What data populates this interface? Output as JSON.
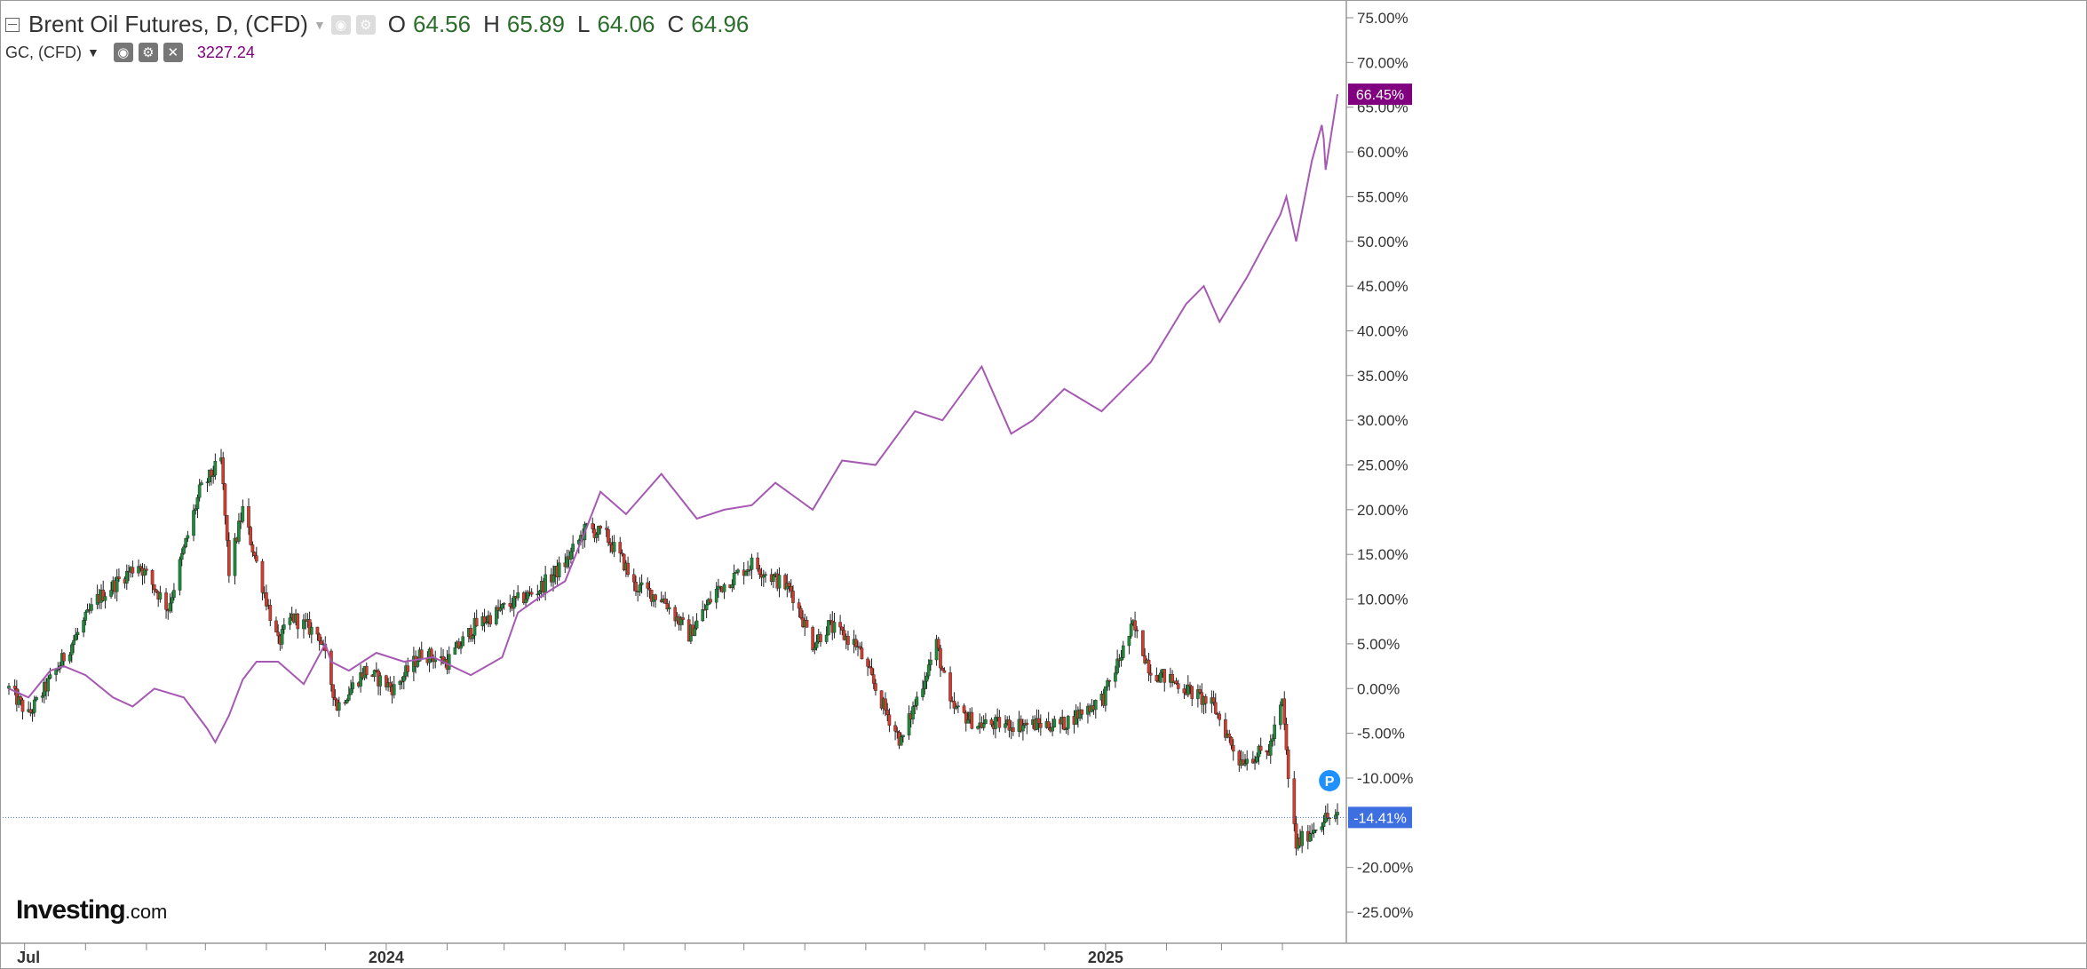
{
  "legend": {
    "instrument": "Brent Oil Futures, D, (CFD)",
    "open_label": "O",
    "open": "64.56",
    "high_label": "H",
    "high": "65.89",
    "low_label": "L",
    "low": "64.06",
    "close_label": "C",
    "close": "64.96",
    "compare_symbol": "GC, (CFD)",
    "compare_value": "3227.24"
  },
  "logo": {
    "main": "Investing",
    "domain": ".com"
  },
  "colors": {
    "up": "#1e8a3a",
    "down": "#d23c2d",
    "compare": "#a659b3",
    "compare_badge": "#800080",
    "price_badge": "#3d6fe0",
    "grid": "#e0e0e0",
    "axis_text": "#333333"
  },
  "chart_data": {
    "type": "candlestick",
    "y_axis": {
      "unit": "%",
      "range": [
        -27,
        77
      ],
      "ticks": [
        "75.00%",
        "70.00%",
        "65.00%",
        "60.00%",
        "55.00%",
        "50.00%",
        "45.00%",
        "40.00%",
        "35.00%",
        "30.00%",
        "25.00%",
        "20.00%",
        "15.00%",
        "10.00%",
        "5.00%",
        "0.00%",
        "-5.00%",
        "-10.00%",
        "-20.00%",
        "-25.00%"
      ],
      "tick_values": [
        75,
        70,
        65,
        60,
        55,
        50,
        45,
        40,
        35,
        30,
        25,
        20,
        15,
        10,
        5,
        0,
        -5,
        -10,
        -20,
        -25
      ]
    },
    "x_axis": {
      "labels": [
        "Jul",
        "2024",
        "2025"
      ],
      "label_dates": [
        "2023-07-03",
        "2024-01-01",
        "2025-01-01"
      ],
      "range": [
        "2023-06-23",
        "2025-04-29"
      ]
    },
    "current_lines": [
      {
        "series": "Brent Oil Futures",
        "value": -14.41,
        "label": "-14.41%"
      },
      {
        "series": "GC",
        "value": 66.45,
        "label": "66.45%"
      }
    ],
    "marker": {
      "text": "P",
      "date": "2025-04-25",
      "value": -10.3
    },
    "series": [
      {
        "name": "Brent Oil Futures",
        "kind": "candlestick",
        "anchors": [
          [
            "2023-06-23",
            0.0
          ],
          [
            "2023-07-03",
            -3.0
          ],
          [
            "2023-07-17",
            2.0
          ],
          [
            "2023-08-07",
            10.0
          ],
          [
            "2023-08-28",
            14.0
          ],
          [
            "2023-09-12",
            9.0
          ],
          [
            "2023-09-28",
            22.0
          ],
          [
            "2023-10-09",
            25.5
          ],
          [
            "2023-10-13",
            13.0
          ],
          [
            "2023-10-20",
            20.0
          ],
          [
            "2023-10-27",
            14.0
          ],
          [
            "2023-11-07",
            5.0
          ],
          [
            "2023-11-14",
            8.0
          ],
          [
            "2023-11-28",
            6.0
          ],
          [
            "2023-12-07",
            -2.0
          ],
          [
            "2023-12-21",
            2.0
          ],
          [
            "2024-01-05",
            0.0
          ],
          [
            "2024-01-19",
            4.0
          ],
          [
            "2024-02-01",
            3.0
          ],
          [
            "2024-02-15",
            7.0
          ],
          [
            "2024-03-01",
            9.0
          ],
          [
            "2024-03-18",
            11.0
          ],
          [
            "2024-04-01",
            14.0
          ],
          [
            "2024-04-12",
            18.0
          ],
          [
            "2024-04-22",
            17.0
          ],
          [
            "2024-05-01",
            14.0
          ],
          [
            "2024-05-06",
            11.5
          ],
          [
            "2024-05-21",
            10.0
          ],
          [
            "2024-06-03",
            6.0
          ],
          [
            "2024-06-17",
            11.0
          ],
          [
            "2024-07-05",
            14.0
          ],
          [
            "2024-07-25",
            11.0
          ],
          [
            "2024-08-05",
            5.0
          ],
          [
            "2024-08-13",
            7.0
          ],
          [
            "2024-08-27",
            5.0
          ],
          [
            "2024-09-10",
            -2.0
          ],
          [
            "2024-09-19",
            -6.0
          ],
          [
            "2024-10-07",
            5.0
          ],
          [
            "2024-10-14",
            -2.0
          ],
          [
            "2024-10-28",
            -4.0
          ],
          [
            "2024-11-15",
            -4.0
          ],
          [
            "2024-12-10",
            -4.0
          ],
          [
            "2024-12-31",
            -1.0
          ],
          [
            "2025-01-15",
            7.0
          ],
          [
            "2025-01-24",
            2.0
          ],
          [
            "2025-02-07",
            0.5
          ],
          [
            "2025-02-25",
            -2.0
          ],
          [
            "2025-03-10",
            -8.0
          ],
          [
            "2025-03-25",
            -7.0
          ],
          [
            "2025-04-01",
            -1.5
          ],
          [
            "2025-04-04",
            -10.0
          ],
          [
            "2025-04-08",
            -17.5
          ],
          [
            "2025-04-15",
            -16.0
          ],
          [
            "2025-04-22",
            -14.5
          ],
          [
            "2025-04-29",
            -14.41
          ]
        ]
      },
      {
        "name": "GC",
        "kind": "line",
        "points": [
          [
            "2023-06-23",
            0.0
          ],
          [
            "2023-07-03",
            -1.0
          ],
          [
            "2023-07-14",
            2.0
          ],
          [
            "2023-07-21",
            2.5
          ],
          [
            "2023-08-01",
            1.5
          ],
          [
            "2023-08-15",
            -1.0
          ],
          [
            "2023-08-25",
            -2.0
          ],
          [
            "2023-09-05",
            0.0
          ],
          [
            "2023-09-20",
            -1.0
          ],
          [
            "2023-10-02",
            -4.5
          ],
          [
            "2023-10-06",
            -6.0
          ],
          [
            "2023-10-13",
            -3.0
          ],
          [
            "2023-10-20",
            1.0
          ],
          [
            "2023-10-27",
            3.0
          ],
          [
            "2023-11-07",
            3.0
          ],
          [
            "2023-11-20",
            0.5
          ],
          [
            "2023-12-01",
            5.0
          ],
          [
            "2023-12-04",
            3.0
          ],
          [
            "2023-12-13",
            2.0
          ],
          [
            "2023-12-27",
            4.0
          ],
          [
            "2024-01-10",
            3.0
          ],
          [
            "2024-01-25",
            3.5
          ],
          [
            "2024-02-13",
            1.5
          ],
          [
            "2024-02-29",
            3.5
          ],
          [
            "2024-03-08",
            8.5
          ],
          [
            "2024-03-21",
            10.5
          ],
          [
            "2024-04-01",
            12.0
          ],
          [
            "2024-04-12",
            18.0
          ],
          [
            "2024-04-19",
            22.0
          ],
          [
            "2024-05-02",
            19.5
          ],
          [
            "2024-05-20",
            24.0
          ],
          [
            "2024-06-07",
            19.0
          ],
          [
            "2024-06-21",
            20.0
          ],
          [
            "2024-07-05",
            20.5
          ],
          [
            "2024-07-17",
            23.0
          ],
          [
            "2024-08-05",
            20.0
          ],
          [
            "2024-08-20",
            25.5
          ],
          [
            "2024-09-06",
            25.0
          ],
          [
            "2024-09-26",
            31.0
          ],
          [
            "2024-10-10",
            30.0
          ],
          [
            "2024-10-30",
            36.0
          ],
          [
            "2024-11-14",
            28.5
          ],
          [
            "2024-11-25",
            30.0
          ],
          [
            "2024-12-11",
            33.5
          ],
          [
            "2024-12-30",
            31.0
          ],
          [
            "2025-01-24",
            36.5
          ],
          [
            "2025-02-11",
            43.0
          ],
          [
            "2025-02-20",
            45.0
          ],
          [
            "2025-02-28",
            41.0
          ],
          [
            "2025-03-14",
            46.0
          ],
          [
            "2025-03-31",
            53.0
          ],
          [
            "2025-04-03",
            55.0
          ],
          [
            "2025-04-08",
            50.0
          ],
          [
            "2025-04-16",
            59.0
          ],
          [
            "2025-04-21",
            63.0
          ],
          [
            "2025-04-22",
            61.5
          ],
          [
            "2025-04-23",
            58.0
          ],
          [
            "2025-04-29",
            66.45
          ]
        ]
      }
    ]
  }
}
